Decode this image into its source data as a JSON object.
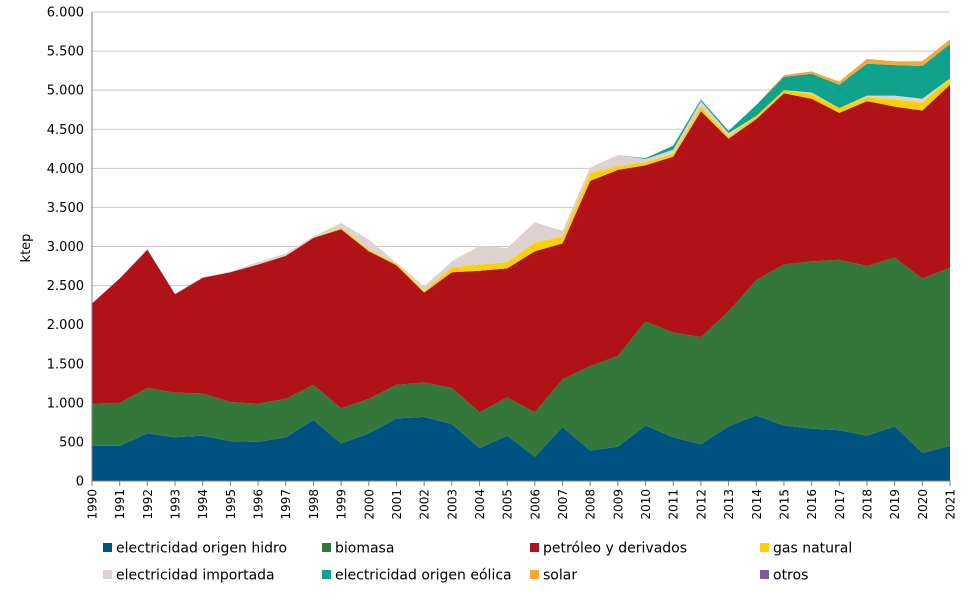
{
  "chart_data": {
    "type": "area",
    "stacked": true,
    "ylabel": "ktep",
    "xlabel": "",
    "ylim": [
      0,
      6000
    ],
    "yticks": [
      0,
      500,
      1000,
      1500,
      2000,
      2500,
      3000,
      3500,
      4000,
      4500,
      5000,
      5500,
      6000
    ],
    "ytick_labels": [
      "0",
      "500",
      "1.000",
      "1.500",
      "2.000",
      "2.500",
      "3.000",
      "3.500",
      "4.000",
      "4.500",
      "5.000",
      "5.500",
      "6.000"
    ],
    "grid": "horizontal",
    "legend_position": "bottom",
    "x": [
      "1990",
      "1991",
      "1992",
      "1993",
      "1994",
      "1995",
      "1996",
      "1997",
      "1998",
      "1999",
      "2000",
      "2001",
      "2002",
      "2003",
      "2004",
      "2005",
      "2006",
      "2007",
      "2008",
      "2009",
      "2010",
      "2011",
      "2012",
      "2013",
      "2014",
      "2015",
      "2016",
      "2017",
      "2018",
      "2019",
      "2020",
      "2021"
    ],
    "series": [
      {
        "name": "electricidad origen hidro",
        "color": "#005380",
        "values": [
          450,
          450,
          610,
          560,
          580,
          510,
          500,
          560,
          780,
          480,
          610,
          800,
          820,
          730,
          420,
          580,
          310,
          690,
          390,
          440,
          710,
          560,
          470,
          700,
          840,
          710,
          670,
          650,
          580,
          700,
          360,
          450
        ]
      },
      {
        "name": "biomasa",
        "color": "#33773A",
        "values": [
          540,
          550,
          580,
          570,
          540,
          500,
          490,
          490,
          450,
          450,
          440,
          430,
          440,
          460,
          460,
          490,
          570,
          610,
          1080,
          1160,
          1330,
          1340,
          1370,
          1470,
          1730,
          2060,
          2140,
          2180,
          2170,
          2160,
          2230,
          2280
        ]
      },
      {
        "name": "petróleo y derivados",
        "color": "#B01217",
        "values": [
          1280,
          1590,
          1770,
          1260,
          1480,
          1660,
          1780,
          1830,
          1880,
          2290,
          1890,
          1530,
          1150,
          1480,
          1810,
          1650,
          2060,
          1740,
          2370,
          2380,
          2000,
          2250,
          2890,
          2210,
          2060,
          2190,
          2080,
          1880,
          2110,
          1930,
          2150,
          2340
        ]
      },
      {
        "name": "gas natural",
        "color": "#FFD000",
        "values": [
          0,
          0,
          0,
          0,
          0,
          0,
          0,
          0,
          0,
          20,
          20,
          20,
          20,
          60,
          80,
          80,
          110,
          90,
          100,
          50,
          40,
          40,
          60,
          30,
          40,
          40,
          60,
          60,
          50,
          90,
          100,
          80
        ]
      },
      {
        "name": "electricidad importada",
        "color": "#DDD2CF",
        "values": [
          0,
          0,
          10,
          0,
          10,
          10,
          30,
          30,
          20,
          60,
          130,
          10,
          60,
          80,
          240,
          180,
          260,
          70,
          70,
          140,
          40,
          50,
          70,
          40,
          0,
          0,
          20,
          0,
          20,
          50,
          50,
          0
        ]
      },
      {
        "name": "electricidad origen eólica",
        "color": "#0FA28C",
        "values": [
          0,
          0,
          0,
          0,
          0,
          0,
          0,
          0,
          0,
          0,
          0,
          0,
          0,
          0,
          0,
          0,
          0,
          0,
          0,
          0,
          10,
          50,
          20,
          30,
          140,
          170,
          240,
          300,
          410,
          390,
          420,
          440
        ]
      },
      {
        "name": "solar",
        "color": "#F4A83A",
        "values": [
          0,
          0,
          0,
          0,
          0,
          0,
          0,
          0,
          0,
          0,
          0,
          0,
          0,
          0,
          0,
          0,
          0,
          0,
          0,
          0,
          0,
          0,
          0,
          0,
          0,
          20,
          30,
          40,
          60,
          50,
          60,
          60
        ]
      },
      {
        "name": "otros",
        "color": "#7E5D9F",
        "values": [
          0,
          0,
          0,
          0,
          0,
          0,
          0,
          0,
          0,
          0,
          0,
          0,
          0,
          0,
          0,
          0,
          0,
          0,
          0,
          0,
          0,
          0,
          0,
          0,
          0,
          0,
          0,
          0,
          0,
          0,
          0,
          0
        ]
      }
    ]
  }
}
